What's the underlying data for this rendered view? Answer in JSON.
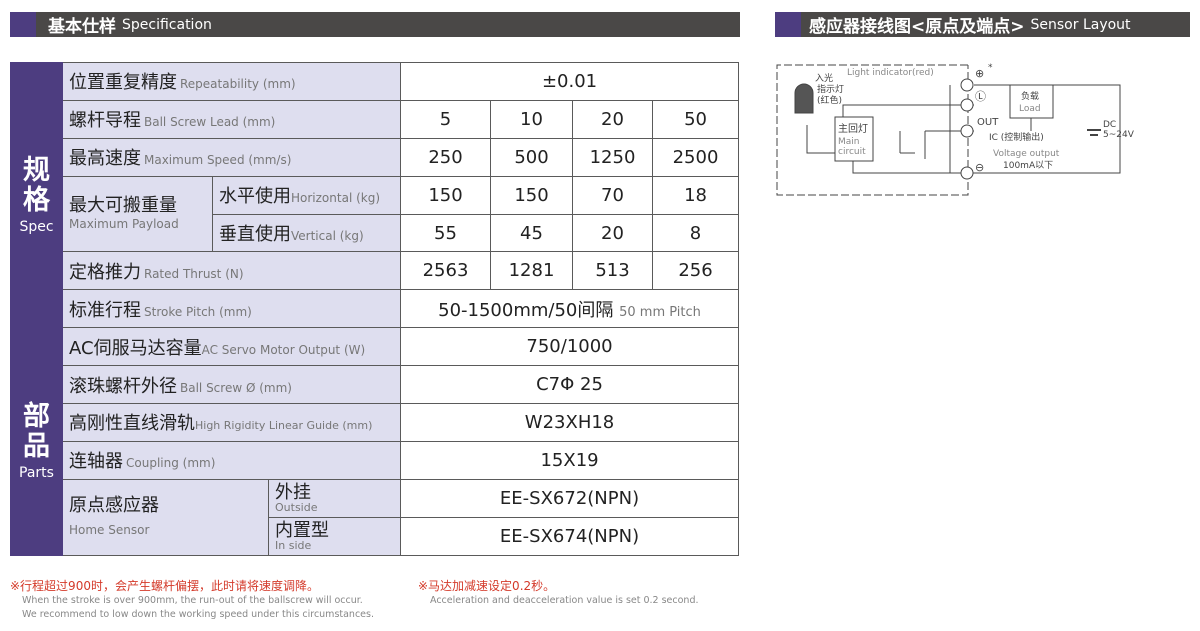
{
  "spec_header": {
    "zh": "基本仕样",
    "en": "Specification"
  },
  "sensor_header": {
    "zh": "感应器接线图<原点及端点>",
    "en": "Sensor Layout"
  },
  "groups": {
    "spec": {
      "zh": "规格",
      "en": "Spec"
    },
    "parts": {
      "zh": "部品",
      "en": "Parts"
    }
  },
  "rows": {
    "repeat": {
      "zh": "位置重复精度",
      "en": "Repeatability (mm)",
      "value": "±0.01"
    },
    "lead": {
      "zh": "螺杆导程",
      "en": "Ball Screw Lead (mm)",
      "values": [
        "5",
        "10",
        "20",
        "50"
      ]
    },
    "speed": {
      "zh": "最高速度",
      "en": "Maximum Speed (mm/s)",
      "values": [
        "250",
        "500",
        "1250",
        "2500"
      ]
    },
    "payload": {
      "zh": "最大可搬重量",
      "en": "Maximum Payload",
      "h": {
        "zh": "水平使用",
        "en": "Horizontal (kg)",
        "values": [
          "150",
          "150",
          "70",
          "18"
        ]
      },
      "v": {
        "zh": "垂直使用",
        "en": "Vertical (kg)",
        "values": [
          "55",
          "45",
          "20",
          "8"
        ]
      }
    },
    "thrust": {
      "zh": "定格推力",
      "en": "Rated Thrust (N)",
      "values": [
        "2563",
        "1281",
        "513",
        "256"
      ]
    },
    "stroke": {
      "zh": "标准行程",
      "en": "Stroke Pitch (mm)",
      "value": "50-1500mm/50间隔",
      "value_en": "50 mm Pitch"
    },
    "motor": {
      "zh": "AC伺服马达容量",
      "en": "AC Servo Motor Output (W)",
      "value": "750/1000"
    },
    "screw": {
      "zh": "滚珠螺杆外径",
      "en": "Ball Screw Ø (mm)",
      "value": "C7Φ 25"
    },
    "guide": {
      "zh": "高刚性直线滑轨",
      "en": "High Rigidity Linear Guide (mm)",
      "value": "W23XH18"
    },
    "coupling": {
      "zh": "连轴器",
      "en": "Coupling (mm)",
      "value": "15X19"
    },
    "sensor": {
      "zh": "原点感应器",
      "en": "Home Sensor",
      "out": {
        "zh": "外挂",
        "en": "Outside",
        "value": "EE-SX672(NPN)"
      },
      "in": {
        "zh": "内置型",
        "en": "In side",
        "value": "EE-SX674(NPN)"
      }
    }
  },
  "notes": {
    "n1_zh": "※行程超过900时，会产生螺杆偏摆，此时请将速度调降。",
    "n1_en1": "When the stroke is over 900mm, the run-out of the ballscrew will occur.",
    "n1_en2": "We recommend to low down the working speed under this circumstances.",
    "n2_zh": "※马达加减速设定0.2秒。",
    "n2_en": "Acceleration and deacceleration value is set 0.2 second."
  },
  "diagram": {
    "light_indicator": "Light indicator(red)",
    "incoming1": "入光",
    "incoming2": "指示灯",
    "incoming3": "(红色)",
    "main_zh": "主回灯",
    "main_en1": "Main",
    "main_en2": "circuit",
    "load_zh": "负载",
    "load_en": "Load",
    "out": "OUT",
    "ic": "IC (控制输出)",
    "voltage_output": "Voltage output",
    "current": "100mA以下",
    "dc": "DC",
    "dc_range": "5~24V",
    "plus": "⊕",
    "star": "*",
    "minus": "⊖",
    "l": "Ⓛ"
  },
  "colors": {
    "accent": "#4d3d80",
    "header": "#4a4847",
    "label_bg": "#dedeef",
    "note_red": "#d43a2a"
  }
}
